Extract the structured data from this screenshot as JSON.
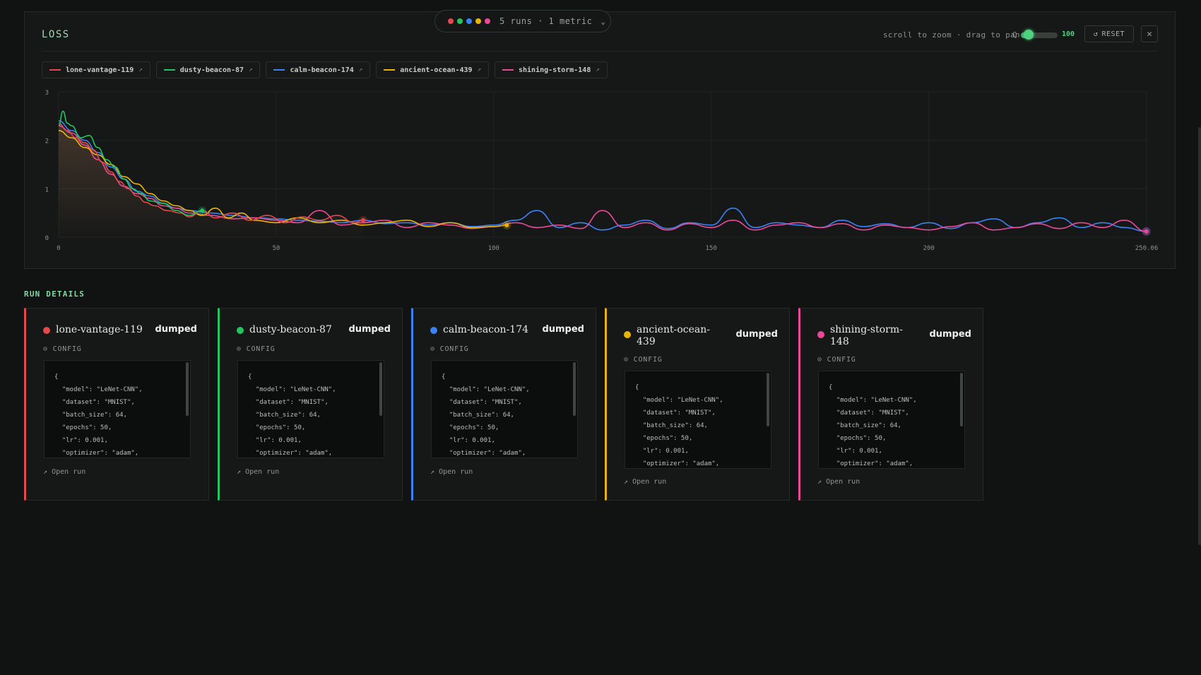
{
  "chart": {
    "title": "LOSS",
    "pill_text": "5 runs · 1 metric",
    "pill_chevron": "⌄",
    "zoom_hint": "scroll to zoom · drag to pan",
    "zoom_icon": "Q",
    "zoom_value": "100",
    "zoom_level": 0.1,
    "reset_label": "RESET",
    "reset_icon": "↺",
    "close_icon": "✕",
    "legend_ext_icon": "↗"
  },
  "runs": [
    {
      "name": "lone-vantage-119",
      "color": "#e5484d",
      "status": "dumped"
    },
    {
      "name": "dusty-beacon-87",
      "color": "#22c55e",
      "status": "dumped"
    },
    {
      "name": "calm-beacon-174",
      "color": "#3b82f6",
      "status": "dumped"
    },
    {
      "name": "ancient-ocean-439",
      "color": "#eab308",
      "status": "dumped"
    },
    {
      "name": "shining-storm-148",
      "color": "#ec4899",
      "status": "dumped"
    }
  ],
  "chart_data": {
    "type": "line",
    "title": "LOSS",
    "xlabel": "",
    "ylabel": "",
    "xlim": [
      0,
      250.06
    ],
    "ylim": [
      0,
      3
    ],
    "x_ticks": [
      "0",
      "50",
      "100",
      "150",
      "200",
      "250.06"
    ],
    "y_ticks": [
      "0",
      "1",
      "2",
      "3"
    ],
    "grid": true,
    "series": [
      {
        "name": "lone-vantage-119",
        "x": [
          0,
          2,
          4,
          6,
          8,
          10,
          12,
          14,
          16,
          18,
          20,
          22,
          25,
          28,
          30,
          33,
          36,
          40,
          44,
          48,
          52,
          56,
          60,
          64,
          68,
          70
        ],
        "y": [
          2.35,
          2.2,
          2.05,
          1.95,
          1.8,
          1.55,
          1.35,
          1.15,
          1.0,
          0.85,
          0.72,
          0.65,
          0.55,
          0.5,
          0.42,
          0.55,
          0.4,
          0.5,
          0.35,
          0.45,
          0.3,
          0.42,
          0.35,
          0.45,
          0.3,
          0.35
        ]
      },
      {
        "name": "dusty-beacon-87",
        "x": [
          0,
          1,
          2,
          3,
          5,
          7,
          9,
          11,
          13,
          15,
          17,
          19,
          21,
          24,
          27,
          30,
          33
        ],
        "y": [
          2.3,
          2.6,
          2.35,
          2.3,
          2.05,
          2.1,
          1.85,
          1.6,
          1.45,
          1.2,
          1.0,
          0.9,
          0.75,
          0.7,
          0.55,
          0.45,
          0.55
        ]
      },
      {
        "name": "calm-beacon-174",
        "x": [
          0,
          3,
          6,
          9,
          12,
          15,
          18,
          21,
          24,
          27,
          30,
          35,
          40,
          45,
          50,
          55,
          60,
          65,
          70,
          75,
          80,
          85,
          90,
          95,
          100,
          105,
          110,
          115,
          120,
          125,
          130,
          135,
          140,
          145,
          150,
          155,
          160,
          165,
          170,
          175,
          180,
          185,
          190,
          195,
          200,
          205,
          210,
          215,
          220,
          225,
          230,
          235,
          240,
          245,
          250
        ],
        "y": [
          2.4,
          2.2,
          2.0,
          1.75,
          1.45,
          1.2,
          0.95,
          0.85,
          0.7,
          0.6,
          0.55,
          0.5,
          0.45,
          0.4,
          0.38,
          0.35,
          0.33,
          0.3,
          0.35,
          0.28,
          0.3,
          0.25,
          0.3,
          0.22,
          0.25,
          0.35,
          0.55,
          0.2,
          0.3,
          0.15,
          0.25,
          0.35,
          0.18,
          0.3,
          0.25,
          0.6,
          0.2,
          0.3,
          0.25,
          0.2,
          0.35,
          0.22,
          0.28,
          0.2,
          0.3,
          0.18,
          0.3,
          0.38,
          0.2,
          0.3,
          0.4,
          0.2,
          0.3,
          0.2,
          0.12
        ]
      },
      {
        "name": "ancient-ocean-439",
        "x": [
          0,
          3,
          6,
          9,
          12,
          15,
          18,
          21,
          24,
          27,
          30,
          33,
          36,
          39,
          42,
          45,
          50,
          55,
          60,
          65,
          70,
          75,
          80,
          85,
          90,
          95,
          100,
          103
        ],
        "y": [
          2.2,
          2.05,
          1.85,
          1.7,
          1.5,
          1.25,
          1.1,
          0.9,
          0.75,
          0.65,
          0.55,
          0.45,
          0.6,
          0.4,
          0.5,
          0.35,
          0.3,
          0.4,
          0.3,
          0.35,
          0.25,
          0.3,
          0.35,
          0.22,
          0.3,
          0.2,
          0.22,
          0.25
        ]
      },
      {
        "name": "shining-storm-148",
        "x": [
          0,
          3,
          6,
          9,
          12,
          15,
          18,
          21,
          24,
          27,
          30,
          35,
          40,
          45,
          50,
          55,
          60,
          65,
          70,
          75,
          80,
          85,
          90,
          95,
          100,
          105,
          110,
          115,
          120,
          125,
          130,
          135,
          140,
          145,
          150,
          155,
          160,
          165,
          170,
          175,
          180,
          185,
          190,
          195,
          200,
          205,
          210,
          215,
          220,
          225,
          230,
          235,
          240,
          245,
          250
        ],
        "y": [
          2.3,
          2.15,
          1.9,
          1.6,
          1.3,
          1.05,
          0.9,
          0.8,
          0.65,
          0.6,
          0.5,
          0.45,
          0.38,
          0.4,
          0.35,
          0.3,
          0.55,
          0.25,
          0.3,
          0.35,
          0.2,
          0.3,
          0.25,
          0.18,
          0.22,
          0.3,
          0.2,
          0.25,
          0.18,
          0.55,
          0.2,
          0.3,
          0.15,
          0.28,
          0.2,
          0.35,
          0.15,
          0.25,
          0.3,
          0.2,
          0.28,
          0.15,
          0.25,
          0.2,
          0.15,
          0.22,
          0.3,
          0.15,
          0.2,
          0.28,
          0.18,
          0.3,
          0.2,
          0.35,
          0.12
        ]
      }
    ]
  },
  "details": {
    "section_title": "RUN DETAILS",
    "config_label": "CONFIG",
    "config_icon": "⊙",
    "open_run_label": "Open run",
    "open_run_icon": "↗",
    "config_lines": [
      "{",
      "  \"model\": \"LeNet-CNN\",",
      "  \"dataset\": \"MNIST\",",
      "  \"batch_size\": 64,",
      "  \"epochs\": 50,",
      "  \"lr\": 0.001,",
      "  \"optimizer\": \"adam\","
    ]
  }
}
